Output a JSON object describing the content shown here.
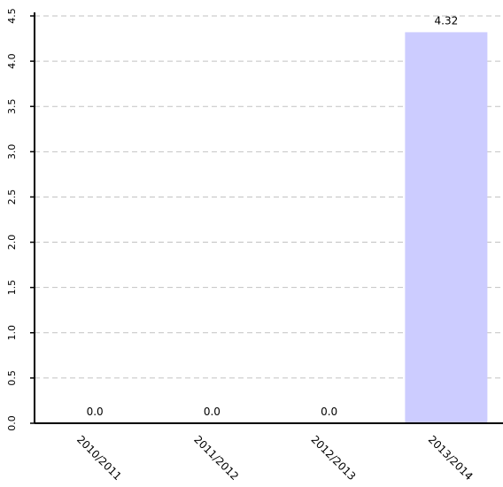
{
  "chart_data": {
    "type": "bar",
    "title": "",
    "xlabel": "",
    "ylabel": "",
    "categories": [
      "2010/2011",
      "2011/2012",
      "2012/2013",
      "2013/2014"
    ],
    "values": [
      0.0,
      0.0,
      0.0,
      4.32
    ],
    "value_labels": [
      "0.0",
      "0.0",
      "0.0",
      "4.32"
    ],
    "yticks": [
      "0.0",
      "0.5",
      "1.0",
      "1.5",
      "2.0",
      "2.5",
      "3.0",
      "3.5",
      "4.0",
      "4.5"
    ],
    "ylim": [
      0,
      4.5
    ],
    "grid": true,
    "colors": {
      "bar": "#ccccff",
      "title": "#4a6fd0",
      "grid": "#c2c2c2"
    }
  }
}
